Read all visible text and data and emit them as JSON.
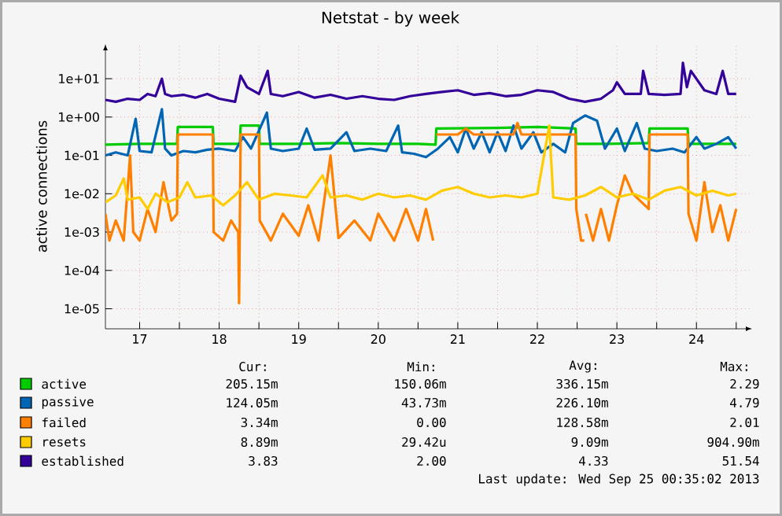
{
  "chart_data": {
    "type": "line",
    "title": "Netstat - by week",
    "ylabel": "active connections",
    "log": "y",
    "grid": true,
    "legend": "bottom",
    "marker": "none",
    "line_style": "solid",
    "xlim": [
      17.07,
      25.2
    ],
    "ylim": [
      3e-06,
      80
    ],
    "xticks": [
      {
        "value": 17.5,
        "label": "17"
      },
      {
        "value": 18,
        "label": null
      },
      {
        "value": 18.5,
        "label": "18"
      },
      {
        "value": 19,
        "label": null
      },
      {
        "value": 19.5,
        "label": "19"
      },
      {
        "value": 20,
        "label": null
      },
      {
        "value": 20.5,
        "label": "20"
      },
      {
        "value": 21,
        "label": null
      },
      {
        "value": 21.5,
        "label": "21"
      },
      {
        "value": 22,
        "label": null
      },
      {
        "value": 22.5,
        "label": "22"
      },
      {
        "value": 23,
        "label": null
      },
      {
        "value": 23.5,
        "label": "23"
      },
      {
        "value": 24,
        "label": null
      },
      {
        "value": 24.5,
        "label": "24"
      },
      {
        "value": 25,
        "label": null
      }
    ],
    "yticks": [
      {
        "value": 1e-05,
        "label": "1e-05"
      },
      {
        "value": 0.0001,
        "label": "1e-04"
      },
      {
        "value": 0.001,
        "label": "1e-03"
      },
      {
        "value": 0.01,
        "label": "1e-02"
      },
      {
        "value": 0.1,
        "label": "1e-01"
      },
      {
        "value": 1,
        "label": "1e+00"
      },
      {
        "value": 10,
        "label": "1e+01"
      }
    ],
    "series": [
      {
        "name": "active",
        "color": "#00cc00",
        "x": [
          17.07,
          17.5,
          17.97,
          17.98,
          18.42,
          18.43,
          18.76,
          18.77,
          19.0,
          19.01,
          19.5,
          20.0,
          20.5,
          21.0,
          21.22,
          21.23,
          22.0,
          22.5,
          22.98,
          22.99,
          23.4,
          23.9,
          23.91,
          24.39,
          24.4,
          25.0
        ],
        "values": [
          0.19,
          0.2,
          0.2,
          0.55,
          0.55,
          0.2,
          0.2,
          0.6,
          0.6,
          0.2,
          0.2,
          0.21,
          0.2,
          0.2,
          0.19,
          0.5,
          0.52,
          0.55,
          0.5,
          0.2,
          0.2,
          0.21,
          0.5,
          0.5,
          0.2,
          0.2
        ]
      },
      {
        "name": "passive",
        "color": "#0066b3",
        "x": [
          17.07,
          17.2,
          17.35,
          17.45,
          17.5,
          17.65,
          17.78,
          17.82,
          17.9,
          18.05,
          18.2,
          18.35,
          18.5,
          18.7,
          18.8,
          18.9,
          19.1,
          19.15,
          19.3,
          19.5,
          19.6,
          19.7,
          19.9,
          20.1,
          20.2,
          20.4,
          20.6,
          20.75,
          20.8,
          20.95,
          21.1,
          21.25,
          21.4,
          21.5,
          21.6,
          21.7,
          21.8,
          21.9,
          22.0,
          22.1,
          22.2,
          22.3,
          22.45,
          22.55,
          22.7,
          22.85,
          22.95,
          23.1,
          23.25,
          23.35,
          23.5,
          23.6,
          23.75,
          23.85,
          24.0,
          24.2,
          24.35,
          24.5,
          24.6,
          24.75,
          24.9,
          25.0
        ],
        "values": [
          0.1,
          0.12,
          0.1,
          0.9,
          0.13,
          0.12,
          1.6,
          0.15,
          0.1,
          0.13,
          0.12,
          0.14,
          0.15,
          0.13,
          0.3,
          0.15,
          1.3,
          0.15,
          0.13,
          0.15,
          0.5,
          0.14,
          0.15,
          0.4,
          0.13,
          0.15,
          0.13,
          0.6,
          0.12,
          0.11,
          0.09,
          0.15,
          0.3,
          0.12,
          0.5,
          0.15,
          0.4,
          0.12,
          0.4,
          0.13,
          0.6,
          0.15,
          0.4,
          0.12,
          0.2,
          0.12,
          0.7,
          1.1,
          0.8,
          0.15,
          0.5,
          0.13,
          0.7,
          0.15,
          0.13,
          0.15,
          0.12,
          0.3,
          0.15,
          0.2,
          0.3,
          0.15
        ]
      },
      {
        "name": "failed",
        "color": "#ff8000",
        "x": [
          17.07,
          17.12,
          17.2,
          17.3,
          17.38,
          17.42,
          17.5,
          17.6,
          17.7,
          17.8,
          17.9,
          17.97,
          17.98,
          18.42,
          18.43,
          18.55,
          18.65,
          18.74,
          18.75,
          18.76,
          18.77,
          19.0,
          19.01,
          19.15,
          19.3,
          19.5,
          19.62,
          19.75,
          19.9,
          20.0,
          20.2,
          20.4,
          20.5,
          20.7,
          20.85,
          21.0,
          21.1,
          21.19,
          21.2,
          21.22,
          21.23,
          21.5,
          21.6,
          21.7,
          22.2,
          22.25,
          22.3,
          22.98,
          22.99,
          23.05,
          23.09,
          23.1,
          23.11,
          23.2,
          23.3,
          23.4,
          23.5,
          23.6,
          23.7,
          23.9,
          23.91,
          24.39,
          24.4,
          24.5,
          24.6,
          24.7,
          24.8,
          24.9,
          25.0
        ],
        "values": [
          0.003,
          0.0006,
          0.002,
          0.0006,
          0.1,
          0.001,
          0.0006,
          0.004,
          0.001,
          0.02,
          0.002,
          0.003,
          0.35,
          0.35,
          0.001,
          0.0006,
          0.002,
          0.001,
          1.4e-05,
          0.002,
          0.35,
          0.35,
          0.002,
          0.0006,
          0.003,
          0.0008,
          0.005,
          0.0006,
          0.1,
          0.0007,
          0.002,
          0.0006,
          0.003,
          0.0006,
          0.004,
          0.0006,
          0.004,
          0.0006,
          null,
          null,
          0.35,
          0.35,
          0.5,
          0.35,
          0.35,
          0.7,
          0.35,
          0.35,
          0.004,
          0.0006,
          0.0006,
          null,
          0.003,
          0.0006,
          0.004,
          0.0006,
          0.005,
          0.03,
          0.01,
          0.004,
          0.35,
          0.35,
          0.003,
          0.0006,
          0.02,
          0.001,
          0.005,
          0.0006,
          0.004
        ]
      },
      {
        "name": "resets",
        "color": "#ffcc00",
        "x": [
          17.07,
          17.2,
          17.3,
          17.35,
          17.5,
          17.6,
          17.7,
          17.85,
          18.0,
          18.1,
          18.2,
          18.4,
          18.55,
          18.7,
          18.85,
          19.0,
          19.2,
          19.4,
          19.6,
          19.8,
          19.9,
          20.1,
          20.3,
          20.5,
          20.7,
          20.9,
          21.1,
          21.3,
          21.5,
          21.7,
          21.9,
          22.1,
          22.3,
          22.5,
          22.65,
          22.7,
          22.9,
          23.1,
          23.3,
          23.5,
          23.7,
          23.9,
          24.1,
          24.3,
          24.5,
          24.7,
          24.9,
          25.0
        ],
        "values": [
          0.006,
          0.009,
          0.025,
          0.007,
          0.008,
          0.004,
          0.01,
          0.006,
          0.008,
          0.02,
          0.008,
          0.009,
          0.005,
          0.009,
          0.02,
          0.007,
          0.01,
          0.009,
          0.008,
          0.03,
          0.008,
          0.009,
          0.007,
          0.01,
          0.008,
          0.009,
          0.007,
          0.012,
          0.015,
          0.01,
          0.008,
          0.009,
          0.008,
          0.01,
          0.6,
          0.008,
          0.007,
          0.009,
          0.015,
          0.008,
          0.01,
          0.007,
          0.012,
          0.015,
          0.009,
          0.012,
          0.009,
          0.01
        ]
      },
      {
        "name": "established",
        "color": "#330099",
        "x": [
          17.07,
          17.2,
          17.35,
          17.5,
          17.6,
          17.7,
          17.78,
          17.82,
          17.9,
          18.05,
          18.2,
          18.35,
          18.5,
          18.7,
          18.77,
          18.85,
          19.0,
          19.11,
          19.15,
          19.3,
          19.5,
          19.7,
          19.9,
          20.1,
          20.3,
          20.5,
          20.7,
          20.9,
          21.1,
          21.3,
          21.5,
          21.7,
          21.9,
          22.1,
          22.3,
          22.5,
          22.7,
          22.9,
          23.1,
          23.3,
          23.45,
          23.5,
          23.6,
          23.8,
          23.83,
          23.9,
          24.1,
          24.3,
          24.33,
          24.38,
          24.43,
          24.6,
          24.75,
          24.83,
          24.9,
          25.0
        ],
        "values": [
          2.8,
          2.5,
          3.0,
          2.8,
          4,
          3.5,
          10,
          4,
          3.5,
          3.8,
          3.2,
          4,
          3,
          2.5,
          12,
          6,
          4,
          16,
          4,
          3.5,
          4.5,
          3.2,
          3.8,
          3,
          3.5,
          3,
          2.8,
          3.5,
          4,
          4.5,
          5,
          3.8,
          4.2,
          3.5,
          3.8,
          5,
          4.5,
          3,
          2.5,
          3,
          5,
          8,
          4,
          4,
          16,
          4,
          3.8,
          4,
          26,
          6,
          16,
          5,
          4,
          16,
          4,
          4
        ]
      }
    ],
    "annotations": [
      "Cur:",
      "Min:",
      "Avg:",
      "Max:",
      "205.15m",
      "150.06m",
      "336.15m",
      "2.29",
      "124.05m",
      "43.73m",
      "226.10m",
      "4.79",
      "3.34m",
      "0.00",
      "128.58m",
      "2.01",
      "8.89m",
      "29.42u",
      "9.09m",
      "904.90m",
      "3.83",
      "2.00",
      "4.33",
      "51.54",
      "Last update: Wed Sep 25 00:35:02 2013"
    ]
  }
}
